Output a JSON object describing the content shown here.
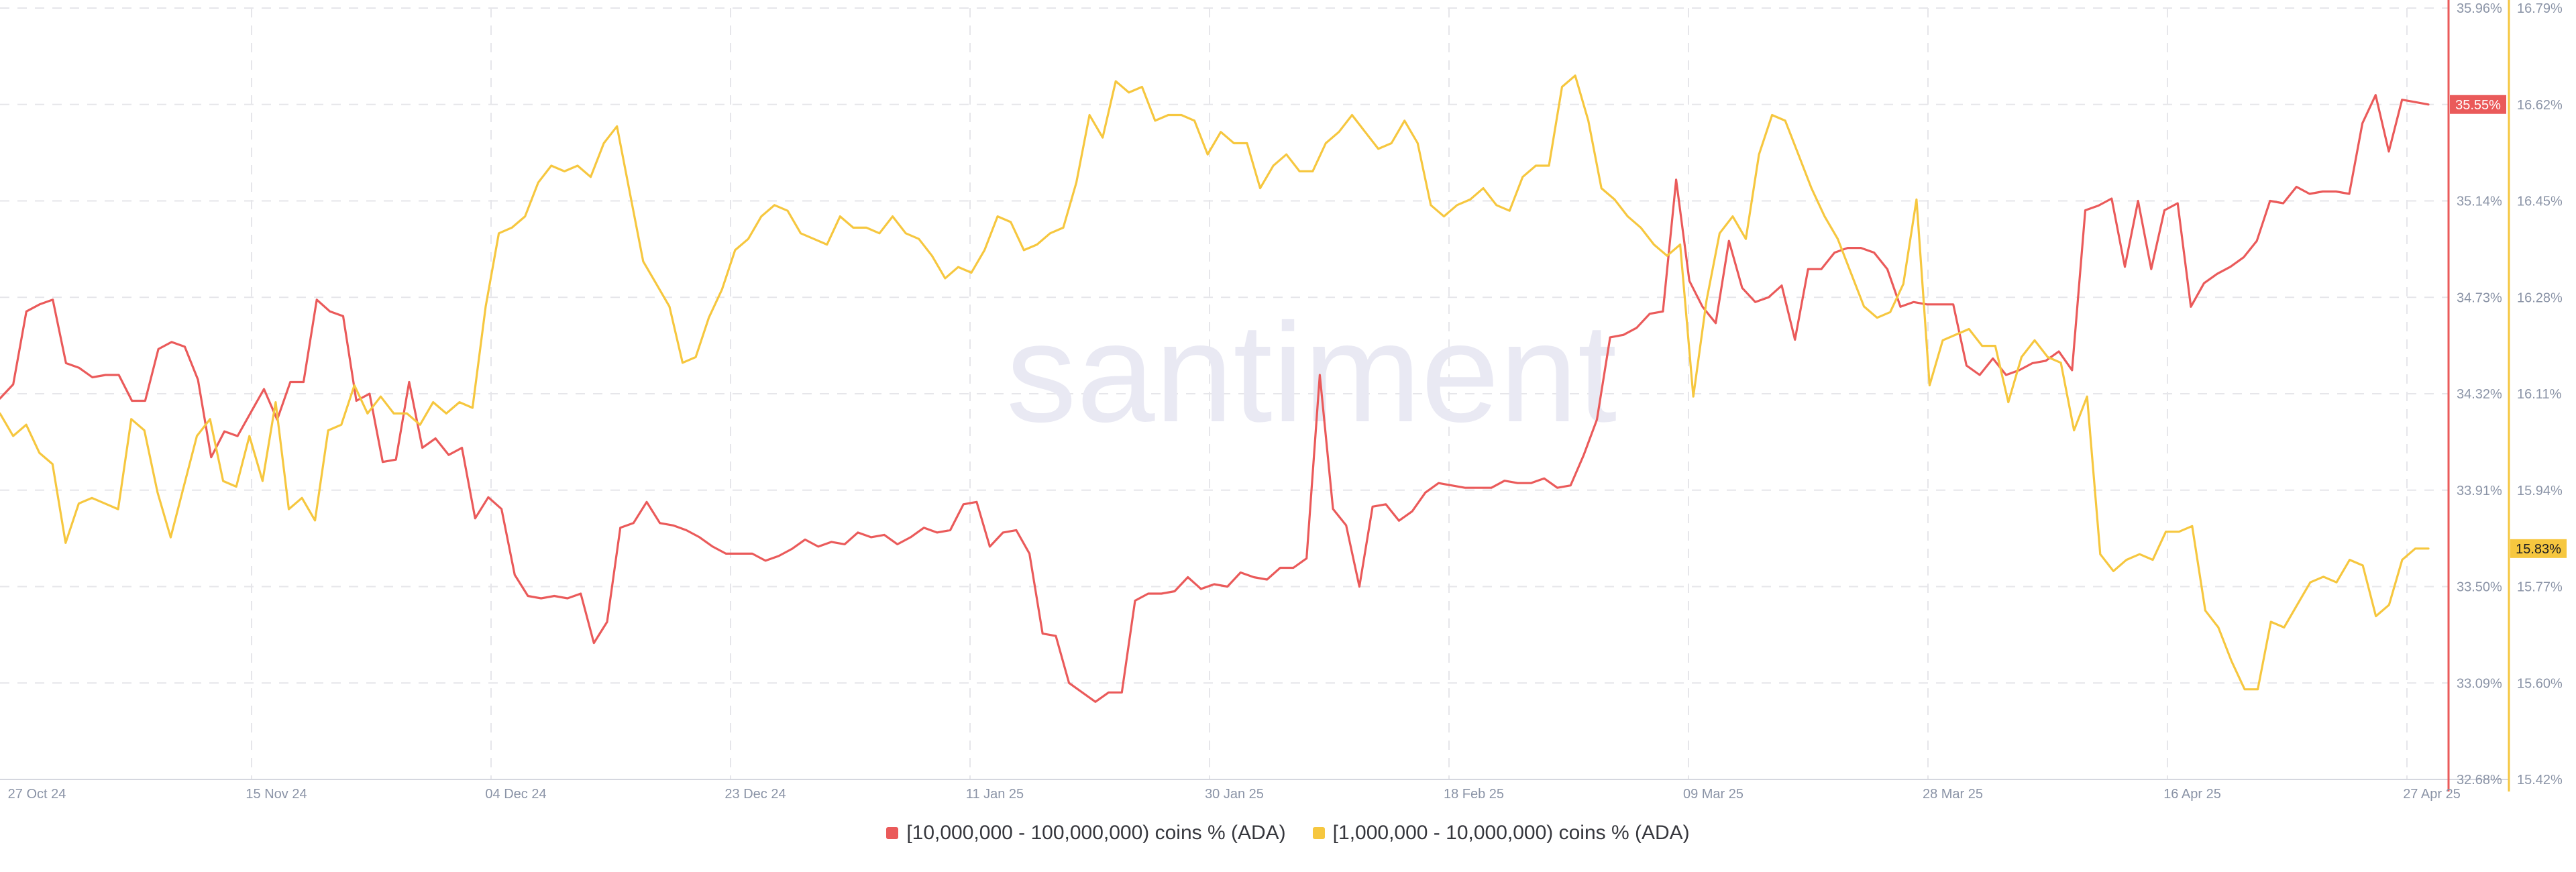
{
  "watermark": "santiment",
  "colors": {
    "red": "#ea5a5a",
    "yellow": "#f6c73f",
    "grid": "#e6e6ea",
    "axis_text": "#8a93a6"
  },
  "chart_data": {
    "type": "line",
    "x_ticks": [
      "27 Oct 24",
      "15 Nov 24",
      "04 Dec 24",
      "23 Dec 24",
      "11 Jan 25",
      "30 Jan 25",
      "18 Feb 25",
      "09 Mar 25",
      "28 Mar 25",
      "16 Apr 25",
      "27 Apr 25"
    ],
    "y_left": {
      "ticks": [
        "35.96%",
        "35.55%",
        "35.14%",
        "34.73%",
        "34.32%",
        "33.91%",
        "33.50%",
        "33.09%",
        "32.68%"
      ],
      "range": [
        32.68,
        35.96
      ]
    },
    "y_right": {
      "ticks": [
        "16.79%",
        "16.62%",
        "16.45%",
        "16.28%",
        "16.11%",
        "15.94%",
        "15.77%",
        "15.60%",
        "15.42%"
      ],
      "range": [
        15.42,
        16.79
      ]
    },
    "current": {
      "red": "35.55%",
      "yellow": "15.83%"
    },
    "series": [
      {
        "name": "[10,000,000 - 100,000,000) coins % (ADA)",
        "axis": "left",
        "color": "#ea5a5a",
        "values": [
          34.3,
          34.36,
          34.67,
          34.7,
          34.72,
          34.45,
          34.43,
          34.39,
          34.4,
          34.4,
          34.29,
          34.29,
          34.51,
          34.54,
          34.52,
          34.38,
          34.05,
          34.16,
          34.14,
          34.24,
          34.34,
          34.21,
          34.37,
          34.37,
          34.72,
          34.67,
          34.65,
          34.29,
          34.32,
          34.03,
          34.04,
          34.37,
          34.09,
          34.13,
          34.06,
          34.09,
          33.79,
          33.88,
          33.83,
          33.55,
          33.46,
          33.45,
          33.46,
          33.45,
          33.47,
          33.26,
          33.35,
          33.75,
          33.77,
          33.86,
          33.77,
          33.76,
          33.74,
          33.71,
          33.67,
          33.64,
          33.64,
          33.64,
          33.61,
          33.63,
          33.66,
          33.7,
          33.67,
          33.69,
          33.68,
          33.73,
          33.71,
          33.72,
          33.68,
          33.71,
          33.75,
          33.73,
          33.74,
          33.85,
          33.86,
          33.67,
          33.73,
          33.74,
          33.64,
          33.3,
          33.29,
          33.09,
          33.05,
          33.01,
          33.05,
          33.05,
          33.44,
          33.47,
          33.47,
          33.48,
          33.54,
          33.49,
          33.51,
          33.5,
          33.56,
          33.54,
          33.53,
          33.58,
          33.58,
          33.62,
          34.4,
          33.83,
          33.76,
          33.5,
          33.84,
          33.85,
          33.78,
          33.82,
          33.9,
          33.94,
          33.93,
          33.92,
          33.92,
          33.92,
          33.95,
          33.94,
          33.94,
          33.96,
          33.92,
          33.93,
          34.06,
          34.21,
          34.56,
          34.57,
          34.6,
          34.66,
          34.67,
          35.23,
          34.8,
          34.69,
          34.62,
          34.97,
          34.77,
          34.71,
          34.73,
          34.78,
          34.55,
          34.85,
          34.85,
          34.92,
          34.94,
          34.94,
          34.92,
          34.85,
          34.69,
          34.71,
          34.7,
          34.7,
          34.7,
          34.44,
          34.4,
          34.47,
          34.4,
          34.42,
          34.45,
          34.46,
          34.5,
          34.42,
          35.1,
          35.12,
          35.15,
          34.86,
          35.14,
          34.85,
          35.1,
          35.13,
          34.69,
          34.79,
          34.83,
          34.86,
          34.9,
          34.97,
          35.14,
          35.13,
          35.2,
          35.17,
          35.18,
          35.18,
          35.17,
          35.47,
          35.59,
          35.35,
          35.57,
          35.56,
          35.55
        ]
      },
      {
        "name": "[1,000,000 - 10,000,000) coins % (ADA)",
        "axis": "right",
        "color": "#f6c73f",
        "values": [
          16.07,
          16.03,
          16.05,
          16.0,
          15.98,
          15.84,
          15.91,
          15.92,
          15.91,
          15.9,
          16.06,
          16.04,
          15.93,
          15.85,
          15.94,
          16.03,
          16.06,
          15.95,
          15.94,
          16.03,
          15.95,
          16.09,
          15.9,
          15.92,
          15.88,
          16.04,
          16.05,
          16.12,
          16.07,
          16.1,
          16.07,
          16.07,
          16.05,
          16.09,
          16.07,
          16.09,
          16.08,
          16.26,
          16.39,
          16.4,
          16.42,
          16.48,
          16.51,
          16.5,
          16.51,
          16.49,
          16.55,
          16.58,
          16.46,
          16.34,
          16.3,
          16.26,
          16.16,
          16.17,
          16.24,
          16.29,
          16.36,
          16.38,
          16.42,
          16.44,
          16.43,
          16.39,
          16.38,
          16.37,
          16.42,
          16.4,
          16.4,
          16.39,
          16.42,
          16.39,
          16.38,
          16.35,
          16.31,
          16.33,
          16.32,
          16.36,
          16.42,
          16.41,
          16.36,
          16.37,
          16.39,
          16.4,
          16.48,
          16.6,
          16.56,
          16.66,
          16.64,
          16.65,
          16.59,
          16.6,
          16.6,
          16.59,
          16.53,
          16.57,
          16.55,
          16.55,
          16.47,
          16.51,
          16.53,
          16.5,
          16.5,
          16.55,
          16.57,
          16.6,
          16.57,
          16.54,
          16.55,
          16.59,
          16.55,
          16.44,
          16.42,
          16.44,
          16.45,
          16.47,
          16.44,
          16.43,
          16.49,
          16.51,
          16.51,
          16.65,
          16.67,
          16.59,
          16.47,
          16.45,
          16.42,
          16.4,
          16.37,
          16.35,
          16.37,
          16.1,
          16.27,
          16.39,
          16.42,
          16.38,
          16.53,
          16.6,
          16.59,
          16.53,
          16.47,
          16.42,
          16.38,
          16.32,
          16.26,
          16.24,
          16.25,
          16.3,
          16.45,
          16.12,
          16.2,
          16.21,
          16.22,
          16.19,
          16.19,
          16.09,
          16.17,
          16.2,
          16.17,
          16.16,
          16.04,
          16.1,
          15.82,
          15.79,
          15.81,
          15.82,
          15.81,
          15.86,
          15.86,
          15.87,
          15.72,
          15.69,
          15.63,
          15.58,
          15.58,
          15.7,
          15.69,
          15.73,
          15.77,
          15.78,
          15.77,
          15.81,
          15.8,
          15.71,
          15.73,
          15.81,
          15.83,
          15.83
        ]
      }
    ],
    "legend_position": "bottom-center",
    "grid": true
  }
}
